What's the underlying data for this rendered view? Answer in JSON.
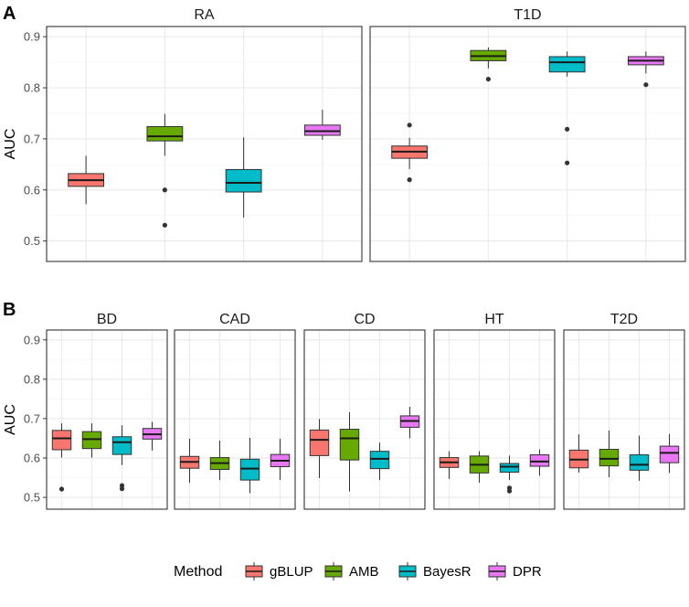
{
  "chart_data": [
    {
      "panel_letter": "A",
      "type": "boxplot",
      "ylabel": "AUC",
      "ylim": [
        0.46,
        0.92
      ],
      "yticks": [
        "0.5",
        "0.6",
        "0.7",
        "0.8",
        "0.9"
      ],
      "facets": [
        {
          "title": "RA",
          "boxes": [
            {
              "method": "gBLUP",
              "q1": 0.607,
              "median": 0.619,
              "q3": 0.632,
              "lower": 0.572,
              "upper": 0.667,
              "outliers": []
            },
            {
              "method": "AMB",
              "q1": 0.696,
              "median": 0.705,
              "q3": 0.724,
              "lower": 0.667,
              "upper": 0.749,
              "outliers": [
                0.6,
                0.531
              ]
            },
            {
              "method": "BayesR",
              "q1": 0.596,
              "median": 0.614,
              "q3": 0.64,
              "lower": 0.546,
              "upper": 0.703,
              "outliers": []
            },
            {
              "method": "DPR",
              "q1": 0.707,
              "median": 0.715,
              "q3": 0.727,
              "lower": 0.698,
              "upper": 0.757,
              "outliers": []
            }
          ]
        },
        {
          "title": "T1D",
          "boxes": [
            {
              "method": "gBLUP",
              "q1": 0.662,
              "median": 0.675,
              "q3": 0.686,
              "lower": 0.641,
              "upper": 0.702,
              "outliers": [
                0.727,
                0.62
              ]
            },
            {
              "method": "AMB",
              "q1": 0.853,
              "median": 0.862,
              "q3": 0.873,
              "lower": 0.838,
              "upper": 0.879,
              "outliers": [
                0.817
              ]
            },
            {
              "method": "BayesR",
              "q1": 0.831,
              "median": 0.85,
              "q3": 0.861,
              "lower": 0.822,
              "upper": 0.871,
              "outliers": [
                0.719,
                0.653
              ]
            },
            {
              "method": "DPR",
              "q1": 0.845,
              "median": 0.853,
              "q3": 0.861,
              "lower": 0.828,
              "upper": 0.871,
              "outliers": [
                0.806
              ]
            }
          ]
        }
      ]
    },
    {
      "panel_letter": "B",
      "type": "boxplot",
      "ylabel": "AUC",
      "ylim": [
        0.47,
        0.925
      ],
      "yticks": [
        "0.5",
        "0.6",
        "0.7",
        "0.8",
        "0.9"
      ],
      "facets": [
        {
          "title": "BD",
          "boxes": [
            {
              "method": "gBLUP",
              "q1": 0.621,
              "median": 0.65,
              "q3": 0.67,
              "lower": 0.601,
              "upper": 0.688,
              "outliers": [
                0.521
              ]
            },
            {
              "method": "AMB",
              "q1": 0.624,
              "median": 0.648,
              "q3": 0.667,
              "lower": 0.601,
              "upper": 0.688,
              "outliers": []
            },
            {
              "method": "BayesR",
              "q1": 0.609,
              "median": 0.64,
              "q3": 0.654,
              "lower": 0.582,
              "upper": 0.683,
              "outliers": [
                0.53,
                0.522
              ]
            },
            {
              "method": "DPR",
              "q1": 0.648,
              "median": 0.66,
              "q3": 0.675,
              "lower": 0.619,
              "upper": 0.692,
              "outliers": []
            }
          ]
        },
        {
          "title": "CAD",
          "boxes": [
            {
              "method": "gBLUP",
              "q1": 0.574,
              "median": 0.59,
              "q3": 0.604,
              "lower": 0.537,
              "upper": 0.649,
              "outliers": []
            },
            {
              "method": "AMB",
              "q1": 0.571,
              "median": 0.587,
              "q3": 0.601,
              "lower": 0.544,
              "upper": 0.644,
              "outliers": []
            },
            {
              "method": "BayesR",
              "q1": 0.544,
              "median": 0.573,
              "q3": 0.597,
              "lower": 0.511,
              "upper": 0.651,
              "outliers": []
            },
            {
              "method": "DPR",
              "q1": 0.578,
              "median": 0.593,
              "q3": 0.609,
              "lower": 0.544,
              "upper": 0.649,
              "outliers": []
            }
          ]
        },
        {
          "title": "CD",
          "boxes": [
            {
              "method": "gBLUP",
              "q1": 0.606,
              "median": 0.646,
              "q3": 0.671,
              "lower": 0.549,
              "upper": 0.699,
              "outliers": []
            },
            {
              "method": "AMB",
              "q1": 0.595,
              "median": 0.65,
              "q3": 0.673,
              "lower": 0.515,
              "upper": 0.716,
              "outliers": []
            },
            {
              "method": "BayesR",
              "q1": 0.573,
              "median": 0.598,
              "q3": 0.617,
              "lower": 0.544,
              "upper": 0.639,
              "outliers": []
            },
            {
              "method": "DPR",
              "q1": 0.678,
              "median": 0.694,
              "q3": 0.707,
              "lower": 0.65,
              "upper": 0.73,
              "outliers": []
            }
          ]
        },
        {
          "title": "HT",
          "boxes": [
            {
              "method": "gBLUP",
              "q1": 0.576,
              "median": 0.589,
              "q3": 0.601,
              "lower": 0.547,
              "upper": 0.617,
              "outliers": []
            },
            {
              "method": "AMB",
              "q1": 0.562,
              "median": 0.583,
              "q3": 0.605,
              "lower": 0.537,
              "upper": 0.617,
              "outliers": []
            },
            {
              "method": "BayesR",
              "q1": 0.564,
              "median": 0.578,
              "q3": 0.586,
              "lower": 0.544,
              "upper": 0.606,
              "outliers": [
                0.524,
                0.516
              ]
            },
            {
              "method": "DPR",
              "q1": 0.579,
              "median": 0.591,
              "q3": 0.608,
              "lower": 0.555,
              "upper": 0.622,
              "outliers": []
            }
          ]
        },
        {
          "title": "T2D",
          "boxes": [
            {
              "method": "gBLUP",
              "q1": 0.575,
              "median": 0.596,
              "q3": 0.62,
              "lower": 0.563,
              "upper": 0.66,
              "outliers": []
            },
            {
              "method": "AMB",
              "q1": 0.58,
              "median": 0.598,
              "q3": 0.622,
              "lower": 0.551,
              "upper": 0.67,
              "outliers": []
            },
            {
              "method": "BayesR",
              "q1": 0.569,
              "median": 0.583,
              "q3": 0.608,
              "lower": 0.542,
              "upper": 0.657,
              "outliers": []
            },
            {
              "method": "DPR",
              "q1": 0.588,
              "median": 0.613,
              "q3": 0.63,
              "lower": 0.562,
              "upper": 0.661,
              "outliers": []
            }
          ]
        }
      ]
    }
  ],
  "legend": {
    "title": "Method",
    "items": [
      {
        "label": "gBLUP",
        "color": "#F8766D"
      },
      {
        "label": "AMB",
        "color": "#66AA00"
      },
      {
        "label": "BayesR",
        "color": "#00BCC8"
      },
      {
        "label": "DPR",
        "color": "#E777F2"
      }
    ]
  },
  "colors": {
    "panel_border": "#333333",
    "grid_major": "#EBEBEB",
    "grid_minor": "#F4F4F4",
    "box_line": "#333333",
    "outlier": "#333333"
  }
}
